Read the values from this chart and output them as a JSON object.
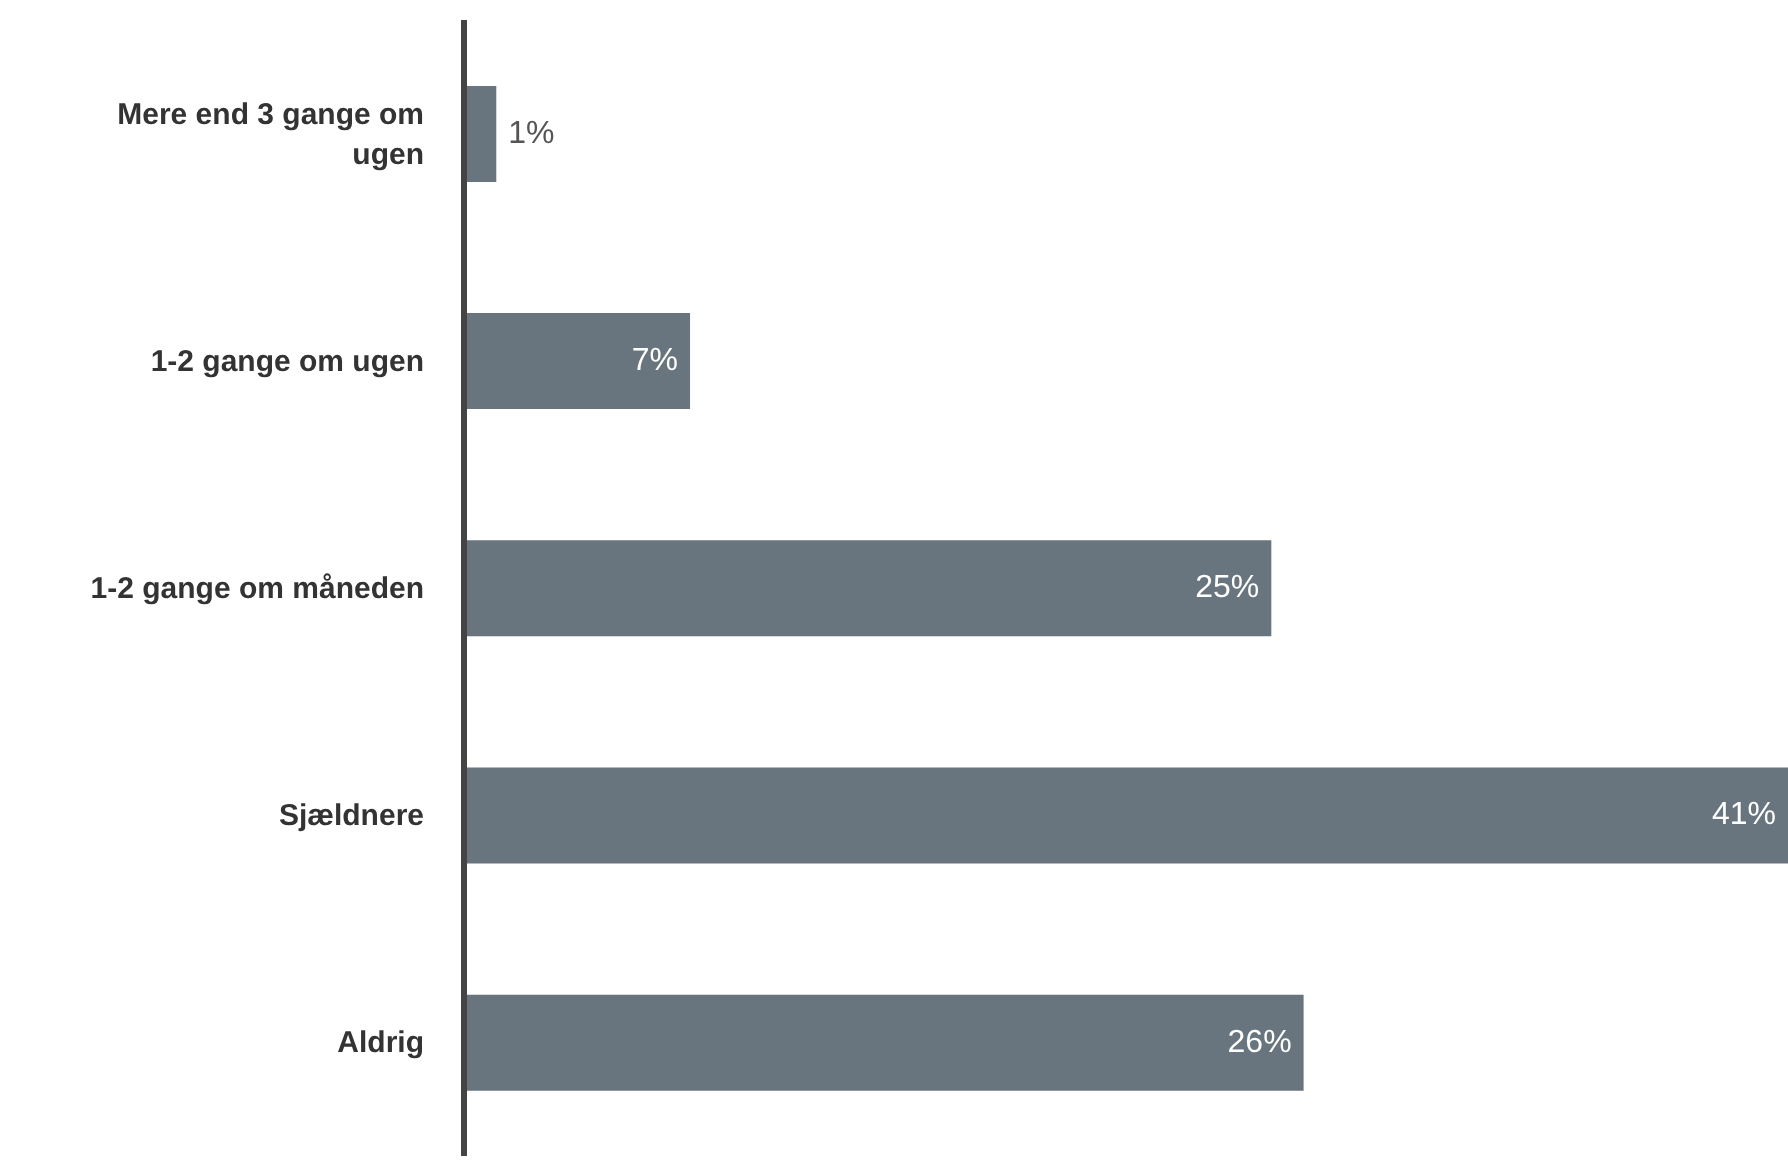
{
  "chart_data": {
    "type": "bar",
    "orientation": "horizontal",
    "categories": [
      "Mere end 3 gange om ugen",
      "1-2 gange om ugen",
      "1-2 gange om måneden",
      "Sjældnere",
      "Aldrig"
    ],
    "values": [
      1,
      7,
      25,
      41,
      26
    ],
    "value_labels": [
      "1%",
      "7%",
      "25%",
      "41%",
      "26%"
    ],
    "color": "#68757e",
    "grid": false,
    "legend": false
  }
}
